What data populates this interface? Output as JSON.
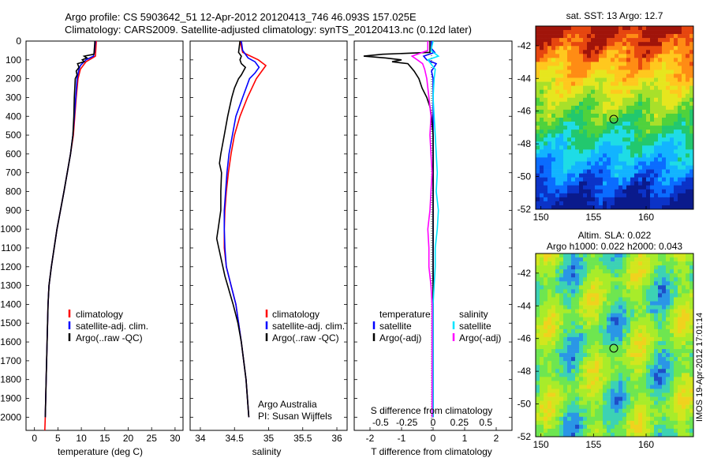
{
  "header": {
    "line1": "Argo profile: CS 5903642_51 12-Apr-2012 20120413_746 46.093S 157.025E",
    "line2": "Climatology: CARS2009. Satellite-adjusted climatology: synTS_20120413.nc (0.12d later)"
  },
  "credit": {
    "line1": "Argo Australia",
    "line2": "PI: Susan Wijffels"
  },
  "watermark": "IMOS 19-Apr-2012 17:01:14",
  "colors": {
    "clim": "#ff0000",
    "sat": "#0000ff",
    "argo": "#000000",
    "sal_sat": "#00e5ff",
    "sal_argo": "#ff00ff"
  },
  "chart_data": [
    {
      "type": "line",
      "title": "",
      "xlabel": "temperature (deg C)",
      "xlim": [
        -1.8,
        31.7
      ],
      "xticks": [
        0,
        5,
        10,
        15,
        20,
        25,
        30
      ],
      "ylim": [
        0,
        2070
      ],
      "yticks": [
        0,
        100,
        200,
        300,
        400,
        500,
        600,
        700,
        800,
        900,
        1000,
        1100,
        1200,
        1300,
        1400,
        1500,
        1600,
        1700,
        1800,
        1900,
        2000
      ],
      "legend": {
        "position": "lower-middle",
        "entries": [
          "climatology",
          "satellite-adj. clim.",
          "Argo(..raw -QC)"
        ]
      },
      "series": [
        {
          "name": "climatology",
          "color": "#ff0000",
          "depth": [
            0,
            80,
            110,
            150,
            200,
            300,
            400,
            500,
            600,
            800,
            1000,
            1200,
            1300,
            1400,
            1600,
            1800,
            2000,
            2070
          ],
          "values": [
            13.2,
            13,
            11,
            9.8,
            9.3,
            8.9,
            8.6,
            8.3,
            7.7,
            6.3,
            4.8,
            3.6,
            3.1,
            2.9,
            2.7,
            2.5,
            2.3,
            2.2
          ]
        },
        {
          "name": "satellite-adj. clim.",
          "color": "#0000ff",
          "depth": [
            0,
            60,
            80,
            100,
            130,
            150,
            200,
            300,
            400,
            500,
            600,
            800,
            1000,
            1200,
            1300,
            1400,
            1600,
            1800,
            2000
          ],
          "values": [
            13,
            12.8,
            12.6,
            11,
            9.8,
            9.5,
            9.1,
            8.8,
            8.5,
            8.2,
            7.7,
            6.3,
            4.8,
            3.6,
            3.1,
            2.9,
            2.7,
            2.5,
            2.3
          ]
        },
        {
          "name": "Argo(..raw -QC)",
          "color": "#000000",
          "depth": [
            0,
            70,
            80,
            90,
            100,
            110,
            120,
            140,
            160,
            180,
            200,
            250,
            300,
            400,
            500,
            600,
            800,
            1000,
            1200,
            1300,
            1400,
            1600,
            1800,
            2000
          ],
          "values": [
            12.9,
            12.7,
            10.6,
            11.2,
            10.2,
            10.6,
            9.2,
            9.5,
            8.9,
            9.1,
            8.7,
            8.6,
            8.5,
            8.4,
            8.2,
            7.7,
            6.3,
            4.8,
            3.6,
            3.1,
            2.9,
            2.7,
            2.5,
            2.3
          ]
        }
      ]
    },
    {
      "type": "line",
      "title": "",
      "xlabel": "salinity",
      "xlim": [
        33.85,
        36.15
      ],
      "xticks": [
        34,
        34.5,
        35,
        35.5,
        36
      ],
      "ylim": [
        0,
        2070
      ],
      "legend": {
        "position": "lower-middle",
        "entries": [
          "climatology",
          "satellite-adj. clim.",
          "Argo(..raw -QC)"
        ]
      },
      "series": [
        {
          "name": "climatology",
          "color": "#ff0000",
          "depth": [
            0,
            60,
            100,
            130,
            160,
            200,
            300,
            400,
            500,
            600,
            700,
            800,
            900,
            1000,
            1100,
            1200,
            1300,
            1400,
            1600,
            1800,
            2000
          ],
          "values": [
            34.58,
            34.62,
            34.85,
            34.96,
            34.9,
            34.82,
            34.69,
            34.58,
            34.5,
            34.45,
            34.41,
            34.38,
            34.36,
            34.35,
            34.35,
            34.38,
            34.45,
            34.52,
            34.6,
            34.67,
            34.71
          ]
        },
        {
          "name": "satellite-adj. clim.",
          "color": "#0000ff",
          "depth": [
            0,
            50,
            90,
            110,
            140,
            170,
            200,
            300,
            400,
            500,
            600,
            700,
            800,
            900,
            1000,
            1100,
            1200,
            1300,
            1400,
            1600,
            1800,
            2000
          ],
          "values": [
            34.6,
            34.62,
            34.7,
            34.8,
            34.86,
            34.8,
            34.72,
            34.62,
            34.52,
            34.47,
            34.42,
            34.39,
            34.37,
            34.35,
            34.35,
            34.36,
            34.38,
            34.45,
            34.52,
            34.6,
            34.67,
            34.71
          ]
        },
        {
          "name": "Argo(..raw -QC)",
          "color": "#000000",
          "depth": [
            0,
            60,
            80,
            100,
            120,
            140,
            160,
            180,
            200,
            250,
            300,
            400,
            500,
            600,
            650,
            700,
            800,
            900,
            1000,
            1050,
            1100,
            1150,
            1200,
            1250,
            1300,
            1350,
            1400,
            1500,
            1600,
            1800,
            2000
          ],
          "values": [
            34.58,
            34.56,
            34.6,
            34.58,
            34.6,
            34.66,
            34.63,
            34.6,
            34.56,
            34.5,
            34.46,
            34.4,
            34.35,
            34.3,
            34.28,
            34.31,
            34.3,
            34.3,
            34.26,
            34.24,
            34.27,
            34.3,
            34.33,
            34.36,
            34.4,
            34.44,
            34.48,
            34.55,
            34.6,
            34.67,
            34.71
          ]
        }
      ]
    },
    {
      "type": "line",
      "title": "",
      "xlabel": "T difference from climatology",
      "xlabel_top": "S difference from climatology",
      "xlim": [
        -2.5,
        2.5
      ],
      "xticks": [
        -2,
        -1,
        0,
        1,
        2
      ],
      "top_xticks": [
        -0.5,
        -0.25,
        0,
        0.25,
        0.5
      ],
      "ylim": [
        0,
        2070
      ],
      "legend": {
        "position": "lower-middle",
        "temperature_title": "temperature",
        "salinity_title": "salinity",
        "entries": [
          "satellite",
          "Argo(-adj)",
          "satellite",
          "Argo(-adj)"
        ]
      },
      "series": [
        {
          "name": "temperature satellite",
          "color": "#0000ff",
          "depth": [
            0,
            40,
            60,
            80,
            100,
            120,
            160,
            200,
            300,
            400,
            600,
            800,
            1000,
            1200,
            1400,
            1600,
            1800,
            2000
          ],
          "values": [
            -0.05,
            -0.05,
            0.05,
            -0.3,
            -0.2,
            0.1,
            -0.05,
            0,
            0,
            0,
            0,
            0,
            0,
            0,
            0,
            0,
            0,
            0
          ]
        },
        {
          "name": "temperature Argo(-adj)",
          "color": "#000000",
          "depth": [
            0,
            60,
            70,
            80,
            90,
            100,
            110,
            120,
            140,
            160,
            200,
            250,
            300,
            350,
            400,
            500,
            600,
            700,
            800,
            900,
            1000,
            1100,
            1200,
            1300,
            1400,
            1500,
            1600,
            1800,
            2000
          ],
          "values": [
            -0.1,
            -0.1,
            -1.6,
            -2.2,
            -1.5,
            -1,
            -1.3,
            -0.8,
            -0.7,
            -0.6,
            -0.45,
            -0.35,
            -0.2,
            -0.1,
            -0.05,
            0,
            0,
            0,
            0,
            0,
            0,
            0,
            0,
            0,
            0,
            0,
            0,
            0,
            0
          ]
        },
        {
          "name": "salinity satellite",
          "color": "#00e5ff",
          "depth": [
            0,
            50,
            80,
            100,
            150,
            200,
            300,
            400,
            500,
            600,
            700,
            800,
            900,
            1000,
            1100,
            1200,
            1300,
            1400,
            1600,
            1800,
            2000
          ],
          "values": [
            0,
            -0.02,
            0.05,
            -0.05,
            0.02,
            0.01,
            0,
            0.01,
            0.02,
            0.03,
            0.04,
            0.03,
            0.05,
            0.04,
            0.02,
            0.02,
            0.01,
            0,
            0,
            0,
            0
          ]
        },
        {
          "name": "salinity Argo(-adj)",
          "color": "#ff00ff",
          "depth": [
            0,
            50,
            80,
            100,
            120,
            150,
            200,
            300,
            400,
            500,
            600,
            700,
            800,
            900,
            1000,
            1100,
            1200,
            1300,
            1400,
            1600,
            1800,
            2000
          ],
          "values": [
            -0.05,
            -0.05,
            -0.2,
            -0.15,
            -0.1,
            -0.08,
            -0.06,
            -0.04,
            -0.02,
            -0.03,
            -0.02,
            -0.01,
            -0.02,
            -0.03,
            -0.05,
            -0.04,
            -0.04,
            -0.02,
            -0.01,
            -0.01,
            -0.01,
            -0.01
          ]
        }
      ]
    },
    {
      "type": "heatmap",
      "title": "sat. SST: 13 Argo: 12.7",
      "xlim": [
        149.5,
        164.5
      ],
      "ylim": [
        -52,
        -40.8
      ],
      "xticks": [
        150,
        155,
        160
      ],
      "yticks": [
        -42,
        -44,
        -46,
        -48,
        -50,
        -52
      ],
      "marker": {
        "lon": 157,
        "lat": -46.1
      },
      "description": "warm (red) in north, cooling to blue in south"
    },
    {
      "type": "heatmap",
      "title": "Altim. SLA: 0.022",
      "subtitle": "Argo h1000: 0.022 h2000: 0.043",
      "xlim": [
        149.5,
        164.5
      ],
      "ylim": [
        -52,
        -40.8
      ],
      "xticks": [
        150,
        155,
        160
      ],
      "yticks": [
        -42,
        -44,
        -46,
        -48,
        -50,
        -52
      ],
      "marker": {
        "lon": 157,
        "lat": -46.1
      }
    }
  ]
}
